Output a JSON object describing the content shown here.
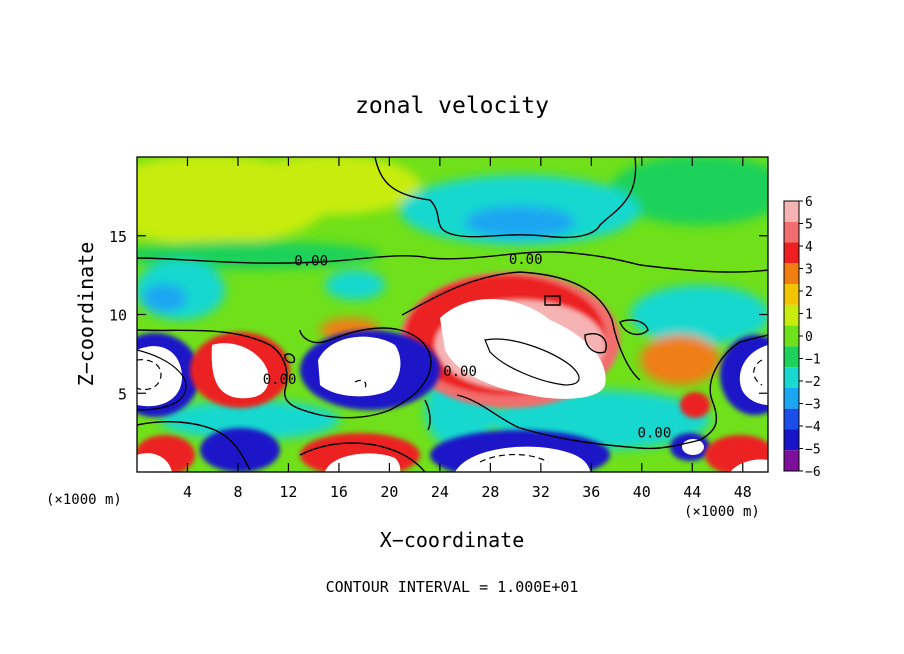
{
  "chart_data": {
    "type": "heatmap",
    "title": "zonal velocity",
    "xlabel": "X−coordinate",
    "ylabel": "Z−coordinate",
    "x_unit_left": "(×1000 m)",
    "x_unit_right": "(×1000 m)",
    "xlim": [
      0,
      50
    ],
    "ylim": [
      0,
      20
    ],
    "x_ticks": [
      4,
      8,
      12,
      16,
      20,
      24,
      28,
      32,
      36,
      40,
      44,
      48
    ],
    "y_ticks": [
      5,
      10,
      15
    ],
    "colorbar": {
      "levels": [
        6,
        5,
        4,
        3,
        2,
        1,
        0,
        -1,
        -2,
        -3,
        -4,
        -5,
        -6
      ],
      "labels": [
        "6",
        "5",
        "4",
        "3",
        "2",
        "1",
        "0",
        "−1",
        "−2",
        "−3",
        "−4",
        "−5",
        "−6"
      ],
      "colors": [
        "#f6b3b3",
        "#f26d6d",
        "#ec2020",
        "#f07e12",
        "#f2c400",
        "#c8ec0d",
        "#6fe01a",
        "#1dd15a",
        "#19d8cf",
        "#1ba6f2",
        "#1b4de8",
        "#1a14c8",
        "#7d0f9a"
      ],
      "saturated_high_color": "#ffffff"
    },
    "contour_labels": [
      {
        "text": "0.00",
        "x": 13.8,
        "y": 13.1
      },
      {
        "text": "0.00",
        "x": 30.8,
        "y": 13.2
      },
      {
        "text": "0.00",
        "x": 11.3,
        "y": 5.6
      },
      {
        "text": "0.00",
        "x": 25.6,
        "y": 6.1
      },
      {
        "text": "0.00",
        "x": 41.0,
        "y": 2.2
      }
    ],
    "footer": "CONTOUR INTERVAL = 1.000E+01"
  }
}
